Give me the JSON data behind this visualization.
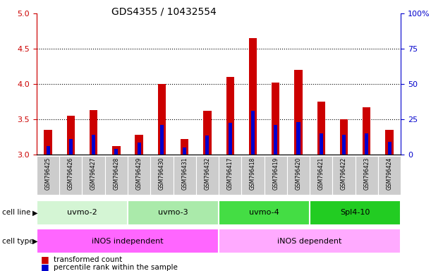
{
  "title": "GDS4355 / 10432554",
  "samples": [
    "GSM796425",
    "GSM796426",
    "GSM796427",
    "GSM796428",
    "GSM796429",
    "GSM796430",
    "GSM796431",
    "GSM796432",
    "GSM796417",
    "GSM796418",
    "GSM796419",
    "GSM796420",
    "GSM796421",
    "GSM796422",
    "GSM796423",
    "GSM796424"
  ],
  "red_values": [
    3.35,
    3.55,
    3.63,
    3.12,
    3.28,
    4.0,
    3.22,
    3.62,
    4.1,
    4.65,
    4.02,
    4.2,
    3.75,
    3.5,
    3.67,
    3.35
  ],
  "blue_values": [
    3.12,
    3.22,
    3.28,
    3.08,
    3.17,
    3.42,
    3.1,
    3.27,
    3.45,
    3.62,
    3.42,
    3.46,
    3.3,
    3.28,
    3.3,
    3.18
  ],
  "ylim_left": [
    3.0,
    5.0
  ],
  "ylim_right": [
    0,
    100
  ],
  "yticks_left": [
    3.0,
    3.5,
    4.0,
    4.5,
    5.0
  ],
  "yticks_right": [
    0,
    25,
    50,
    75,
    100
  ],
  "grid_lines": [
    3.5,
    4.0,
    4.5
  ],
  "cell_lines": [
    {
      "label": "uvmo-2",
      "start": 0,
      "end": 3,
      "color": "#d4f5d4"
    },
    {
      "label": "uvmo-3",
      "start": 4,
      "end": 7,
      "color": "#aaeaaa"
    },
    {
      "label": "uvmo-4",
      "start": 8,
      "end": 11,
      "color": "#44dd44"
    },
    {
      "label": "Spl4-10",
      "start": 12,
      "end": 15,
      "color": "#22cc22"
    }
  ],
  "cell_types": [
    {
      "label": "iNOS independent",
      "start": 0,
      "end": 7,
      "color": "#ff66ff"
    },
    {
      "label": "iNOS dependent",
      "start": 8,
      "end": 15,
      "color": "#ffaaff"
    }
  ],
  "bar_color_red": "#cc0000",
  "bar_color_blue": "#0000cc",
  "bar_width": 0.35,
  "blue_bar_width": 0.35,
  "background_color": "#ffffff",
  "title_fontsize": 10,
  "left_tick_color": "#cc0000",
  "right_tick_color": "#0000cc",
  "sample_box_color": "#cccccc",
  "cell_line_label": "cell line",
  "cell_type_label": "cell type"
}
